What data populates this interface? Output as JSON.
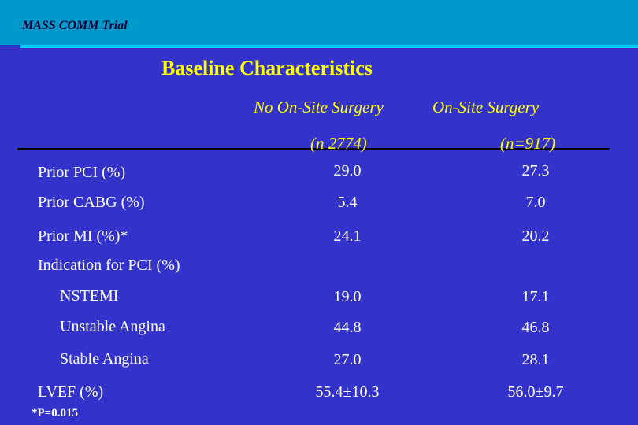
{
  "header": {
    "trial_name": "MASS COMM Trial"
  },
  "title": "Baseline Characteristics",
  "columns": [
    {
      "label": "No On-Site Surgery",
      "n": "(n 2774)"
    },
    {
      "label": "On-Site Surgery",
      "n": "(n=917)"
    }
  ],
  "rows": [
    {
      "label": "Prior PCI (%)",
      "values": [
        "29.0",
        "27.3"
      ]
    },
    {
      "label": "Prior CABG (%)",
      "values": [
        "5.4",
        "7.0"
      ]
    },
    {
      "label": "Prior MI (%)*",
      "values": [
        "24.1",
        "20.2"
      ]
    },
    {
      "label": "Indication for PCI (%)",
      "values": []
    },
    {
      "label": "NSTEMI",
      "values": [
        "19.0",
        "17.1"
      ]
    },
    {
      "label": "Unstable Angina",
      "values": [
        "44.8",
        "46.8"
      ]
    },
    {
      "label": "Stable Angina",
      "values": [
        "27.0",
        "28.1"
      ]
    },
    {
      "label": "LVEF (%)",
      "values": [
        "55.4±10.3",
        "56.0±9.7"
      ]
    }
  ],
  "footnote": "*P=0.015",
  "colors": {
    "background": "#3333cc",
    "header_bar": "#0099cc",
    "accent": "#ffff00"
  }
}
